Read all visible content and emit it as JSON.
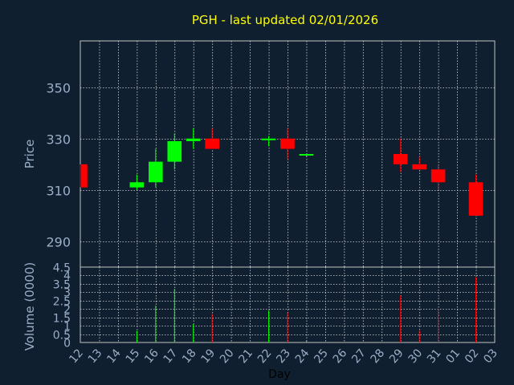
{
  "chart_data": {
    "type": "candlestick",
    "title": "PGH - last updated 02/01/2026",
    "price_panel": {
      "ylabel": "Price",
      "ylim": [
        280,
        368
      ],
      "yticks": [
        290,
        310,
        330,
        350
      ]
    },
    "volume_panel": {
      "ylabel": "Volume (0000)",
      "ylim": [
        0,
        4.5
      ],
      "yticks": [
        0,
        0.5,
        1,
        1.5,
        2,
        2.5,
        3,
        3.5,
        4,
        4.5
      ]
    },
    "xlabel": "Day",
    "x_ticks": [
      "12",
      "13",
      "14",
      "15",
      "16",
      "17",
      "18",
      "19",
      "20",
      "21",
      "22",
      "23",
      "24",
      "25",
      "26",
      "27",
      "28",
      "29",
      "30",
      "31",
      "01",
      "02",
      "03"
    ],
    "candles": [
      {
        "day": "12",
        "open": 320,
        "high": 320,
        "low": 311,
        "close": 311,
        "volume": 0
      },
      {
        "day": "15",
        "open": 311,
        "high": 316,
        "low": 310,
        "close": 313,
        "volume": 0.7
      },
      {
        "day": "16",
        "open": 313,
        "high": 326,
        "low": 311,
        "close": 321,
        "volume": 2.2
      },
      {
        "day": "17",
        "open": 321,
        "high": 332,
        "low": 318,
        "close": 329,
        "volume": 3.2
      },
      {
        "day": "18",
        "open": 329,
        "high": 334,
        "low": 326,
        "close": 330,
        "volume": 1.1
      },
      {
        "day": "19",
        "open": 330,
        "high": 334,
        "low": 326,
        "close": 326,
        "volume": 1.7
      },
      {
        "day": "22",
        "open": 330,
        "high": 331,
        "low": 327,
        "close": 330,
        "volume": 1.9
      },
      {
        "day": "23",
        "open": 330,
        "high": 334,
        "low": 322,
        "close": 326,
        "volume": 1.8
      },
      {
        "day": "24",
        "open": 324,
        "high": 324,
        "low": 323,
        "close": 324,
        "volume": 0.1
      },
      {
        "day": "29",
        "open": 324,
        "high": 330,
        "low": 317,
        "close": 320,
        "volume": 2.8
      },
      {
        "day": "30",
        "open": 320,
        "high": 323,
        "low": 318,
        "close": 318,
        "volume": 0.7
      },
      {
        "day": "31",
        "open": 318,
        "high": 320,
        "low": 310,
        "close": 313,
        "volume": 2.0
      },
      {
        "day": "02",
        "open": 313,
        "high": 316,
        "low": 300,
        "close": 300,
        "volume": 3.9
      }
    ],
    "up_color": "#00ff00",
    "down_color": "#ff0000",
    "grid": true
  }
}
